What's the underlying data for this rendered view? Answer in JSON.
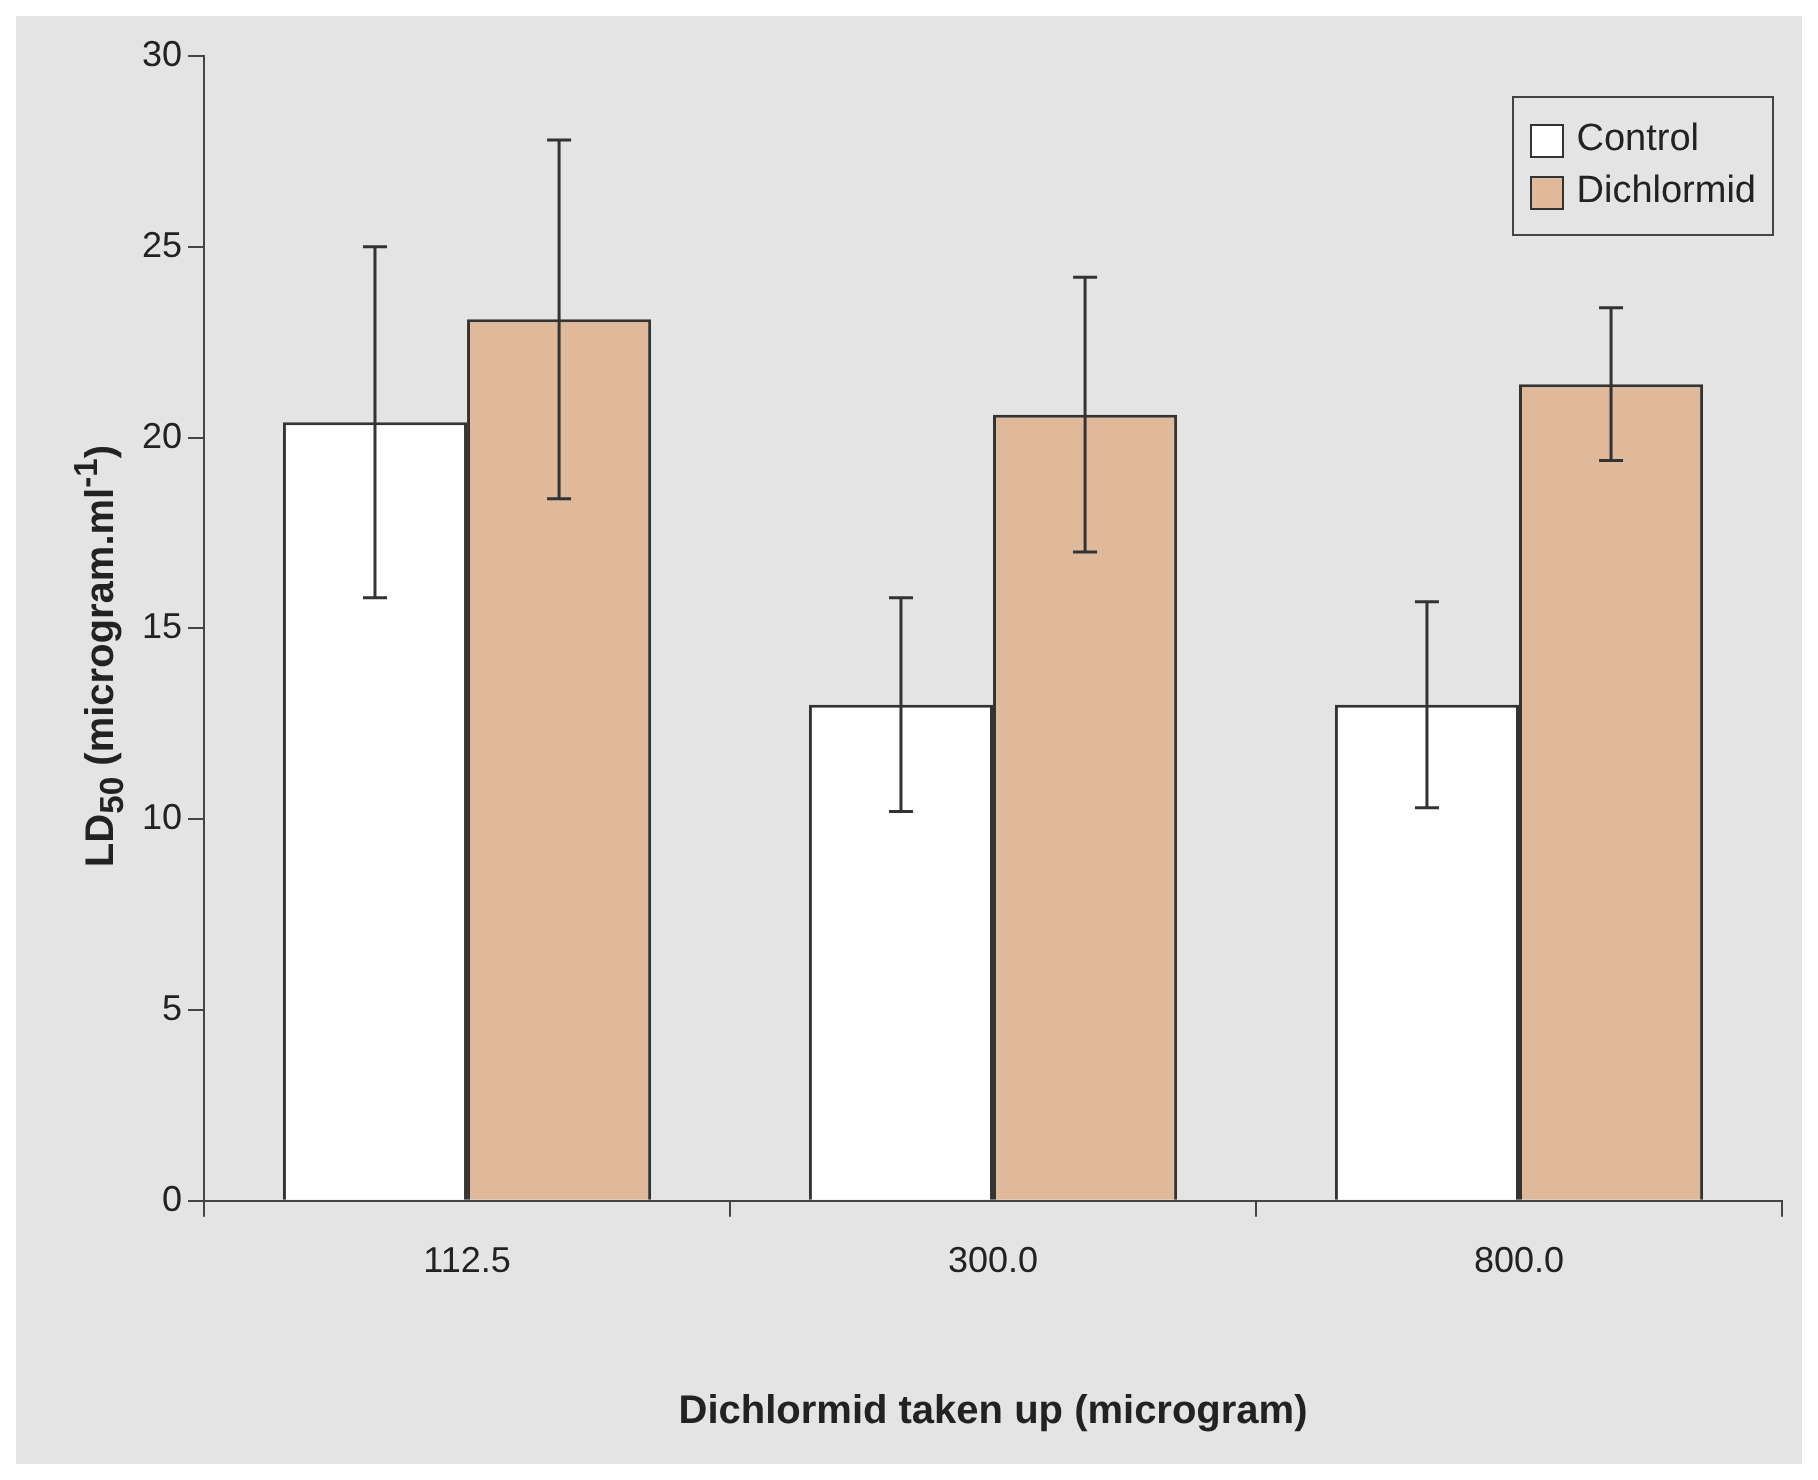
{
  "chart_data": {
    "type": "bar",
    "xlabel": "Dichlormid taken up (microgram)",
    "ylabel": "LD$_{50}$ (microgram.ml$^{-1}$)",
    "categories": [
      "112.5",
      "300.0",
      "800.0"
    ],
    "series": [
      {
        "name": "Control",
        "color": "#ffffff",
        "values": [
          20.4,
          13.0,
          13.0
        ],
        "errors": [
          4.6,
          2.8,
          2.7
        ]
      },
      {
        "name": "Dichlormid",
        "color": "#dfb99a",
        "values": [
          23.1,
          20.6,
          21.4
        ],
        "errors": [
          4.7,
          3.6,
          2.0
        ]
      }
    ],
    "ylim": [
      0,
      30
    ],
    "yticks": [
      0,
      5,
      10,
      15,
      20,
      25,
      30
    ],
    "grid": false,
    "legend": "top right"
  }
}
